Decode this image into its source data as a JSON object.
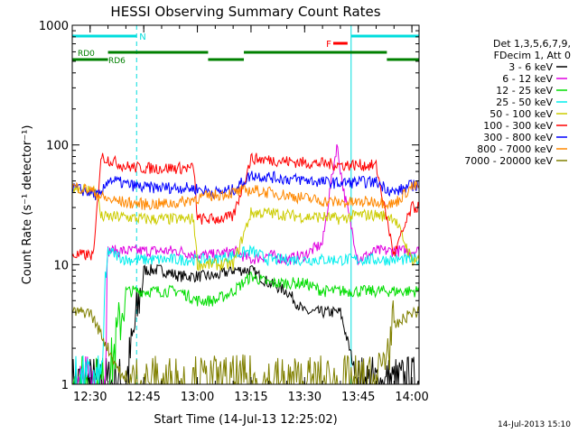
{
  "chart_data": {
    "type": "line",
    "title": "HESSI Observing Summary Count Rates",
    "xlabel": "Start Time (14-Jul-13 12:25:02)",
    "ylabel": "Count Rate (s⁻¹ detector⁻¹)",
    "y_scale": "log",
    "xlim_minutes": [
      0,
      97
    ],
    "ylim": [
      1,
      1000
    ],
    "x_ticks": [
      {
        "label": "12:30",
        "minute": 5
      },
      {
        "label": "12:45",
        "minute": 20
      },
      {
        "label": "13:00",
        "minute": 35
      },
      {
        "label": "13:15",
        "minute": 50
      },
      {
        "label": "13:30",
        "minute": 65
      },
      {
        "label": "13:45",
        "minute": 80
      },
      {
        "label": "14:00",
        "minute": 95
      }
    ],
    "y_ticks": [
      {
        "label": "1",
        "value": 1
      },
      {
        "label": "10",
        "value": 10
      },
      {
        "label": "100",
        "value": 100
      },
      {
        "label": "1000",
        "value": 1000
      }
    ],
    "legend_header": [
      "Det 1,3,5,6,7,9,",
      "FDecim 1, Att 0"
    ],
    "legend_position": "right",
    "series": [
      {
        "name": "3 - 6 keV",
        "color": "#000000",
        "x": [
          0,
          5,
          10,
          15,
          20,
          25,
          30,
          35,
          40,
          45,
          50,
          55,
          60,
          65,
          70,
          75,
          80,
          85,
          90,
          95,
          97
        ],
        "values": [
          1,
          1,
          1,
          1,
          9,
          9,
          8,
          8,
          8,
          9,
          9,
          7,
          6,
          4,
          4,
          4,
          1,
          1,
          1,
          1,
          1
        ]
      },
      {
        "name": "6 - 12 keV",
        "color": "#e000e0",
        "x": [
          0,
          5,
          9,
          10,
          15,
          20,
          25,
          30,
          35,
          40,
          45,
          50,
          55,
          60,
          65,
          70,
          72,
          74,
          76,
          80,
          85,
          88,
          90,
          95,
          97
        ],
        "values": [
          1,
          1,
          1,
          13,
          13,
          13,
          13,
          13,
          12,
          12,
          13,
          11,
          12,
          11,
          12,
          15,
          40,
          100,
          40,
          11,
          13,
          13,
          13,
          13,
          13
        ]
      },
      {
        "name": "12 - 25 keV",
        "color": "#00dd00",
        "x": [
          0,
          5,
          10,
          15,
          20,
          25,
          30,
          35,
          40,
          45,
          50,
          55,
          60,
          65,
          70,
          75,
          80,
          85,
          90,
          95,
          97
        ],
        "values": [
          1,
          1,
          1,
          6,
          6,
          6,
          6,
          5,
          5,
          6,
          8,
          7,
          7,
          7,
          6,
          6,
          6,
          6,
          6,
          6,
          6
        ]
      },
      {
        "name": "25 - 50 keV",
        "color": "#00eeee",
        "x": [
          0,
          5,
          8,
          10,
          15,
          20,
          25,
          30,
          35,
          40,
          45,
          50,
          55,
          60,
          65,
          70,
          75,
          80,
          85,
          90,
          95,
          97
        ],
        "values": [
          1,
          1,
          1,
          13,
          11,
          11,
          11,
          11,
          11,
          11,
          12,
          13,
          11,
          11,
          11,
          11,
          11,
          11,
          11,
          11,
          11,
          11
        ]
      },
      {
        "name": "50 - 100 keV",
        "color": "#cccc00",
        "x": [
          0,
          5,
          7,
          8,
          15,
          20,
          25,
          30,
          34,
          35,
          40,
          45,
          50,
          55,
          60,
          65,
          70,
          75,
          80,
          85,
          90,
          95,
          97
        ],
        "values": [
          45,
          42,
          42,
          25,
          25,
          24,
          24,
          24,
          24,
          10,
          10,
          10,
          27,
          27,
          26,
          25,
          25,
          24,
          26,
          26,
          25,
          11,
          11
        ]
      },
      {
        "name": "100 - 300 keV",
        "color": "#ff0000",
        "x": [
          0,
          5,
          6,
          8,
          15,
          20,
          25,
          30,
          34,
          35,
          40,
          45,
          50,
          55,
          60,
          65,
          70,
          75,
          80,
          85,
          90,
          95,
          97
        ],
        "values": [
          12,
          12,
          12,
          80,
          66,
          64,
          64,
          64,
          64,
          24,
          24,
          25,
          77,
          75,
          73,
          71,
          70,
          68,
          68,
          67,
          12,
          30,
          30
        ]
      },
      {
        "name": "300 - 800 keV",
        "color": "#0000ff",
        "x": [
          0,
          5,
          8,
          10,
          15,
          20,
          25,
          30,
          35,
          40,
          45,
          50,
          55,
          60,
          65,
          70,
          75,
          80,
          85,
          90,
          95,
          97
        ],
        "values": [
          44,
          40,
          37,
          52,
          47,
          44,
          44,
          44,
          43,
          40,
          42,
          56,
          54,
          52,
          51,
          49,
          48,
          49,
          49,
          40,
          46,
          46
        ]
      },
      {
        "name": "800 - 7000 keV",
        "color": "#ff8800",
        "x": [
          0,
          5,
          8,
          10,
          15,
          20,
          25,
          30,
          35,
          40,
          45,
          50,
          55,
          60,
          65,
          70,
          75,
          80,
          85,
          90,
          95,
          97
        ],
        "values": [
          45,
          42,
          37,
          35,
          33,
          32,
          32,
          33,
          36,
          38,
          40,
          42,
          40,
          38,
          36,
          34,
          33,
          33,
          34,
          32,
          45,
          45
        ]
      },
      {
        "name": "7000 - 20000 keV",
        "color": "#808000",
        "x": [
          0,
          5,
          10,
          15,
          20,
          25,
          30,
          35,
          40,
          45,
          50,
          55,
          60,
          65,
          70,
          75,
          80,
          85,
          90,
          95,
          97
        ],
        "values": [
          4,
          4,
          2,
          1,
          1,
          1,
          1,
          1,
          1,
          1,
          1,
          1,
          1,
          1,
          1,
          1,
          1,
          1,
          3,
          4,
          4
        ]
      }
    ],
    "annotations": [
      {
        "label": "N",
        "color": "#00dddd"
      },
      {
        "label": "RD0",
        "color": "#008000"
      },
      {
        "label": "RD6",
        "color": "#008000"
      },
      {
        "label": "F",
        "color": "#ff0000"
      }
    ],
    "vertical_markers_minutes": [
      0,
      18,
      78,
      97
    ],
    "status_bars": [
      {
        "name": "N",
        "color": "#00dddd",
        "segments": [
          [
            0,
            18
          ],
          [
            78,
            97
          ]
        ]
      },
      {
        "name": "F",
        "color": "#ff0000",
        "segments": [
          [
            73,
            77
          ]
        ]
      },
      {
        "name": "RD",
        "color": "#008000",
        "segments": [
          [
            0,
            10
          ],
          [
            10,
            38
          ],
          [
            38,
            48
          ],
          [
            48,
            88
          ],
          [
            88,
            97
          ]
        ]
      }
    ],
    "grid": false
  },
  "footer": {
    "timestamp": "14-Jul-2013 15:10"
  }
}
